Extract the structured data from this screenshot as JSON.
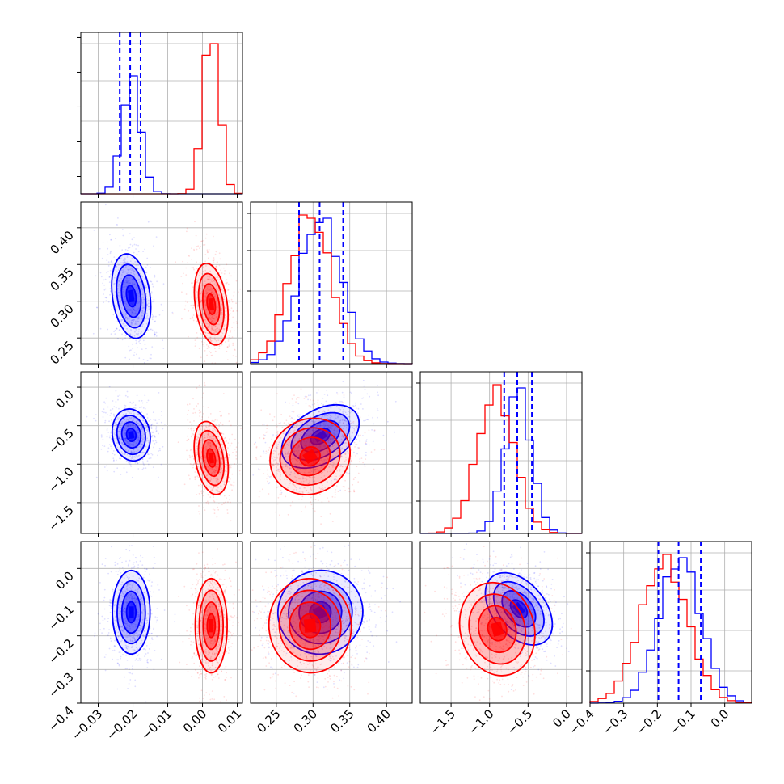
{
  "chart_data": {
    "type": "corner",
    "series": [
      {
        "name": "",
        "color": "#0000ff"
      },
      {
        "name": "",
        "color": "#ff0000"
      }
    ],
    "parameters": [
      {
        "range": [
          -0.035,
          0.0115
        ],
        "ticks": [
          "−0.03",
          "−0.02",
          "−0.01",
          "0.00",
          "0.01"
        ],
        "tick_values": [
          -0.03,
          -0.02,
          -0.01,
          0.0,
          0.01
        ]
      },
      {
        "range": [
          0.215,
          0.435
        ],
        "ticks": [
          "0.25",
          "0.30",
          "0.35",
          "0.40"
        ],
        "tick_values": [
          0.25,
          0.3,
          0.35,
          0.4
        ]
      },
      {
        "range": [
          -1.9,
          0.2
        ],
        "ticks": [
          "−1.5",
          "−1.0",
          "−0.5",
          "0.0"
        ],
        "tick_values": [
          -1.5,
          -1.0,
          -0.5,
          0.0
        ]
      },
      {
        "range": [
          -0.4,
          0.08
        ],
        "ticks": [
          "−0.4",
          "−0.3",
          "−0.2",
          "−0.1",
          "0.0"
        ],
        "tick_values": [
          -0.4,
          -0.3,
          -0.2,
          -0.1,
          0.0
        ]
      }
    ],
    "marginals": [
      {
        "blue": {
          "mean": -0.0205,
          "sd": 0.0027
        },
        "red": {
          "mean": 0.0025,
          "sd": 0.0023
        },
        "quantiles": [
          -0.0238,
          -0.0208,
          -0.0178
        ]
      },
      {
        "blue": {
          "mean": 0.31,
          "sd": 0.029
        },
        "red": {
          "mean": 0.296,
          "sd": 0.028
        },
        "quantiles": [
          0.281,
          0.309,
          0.341
        ]
      },
      {
        "blue": {
          "mean": -0.63,
          "sd": 0.17
        },
        "red": {
          "mean": -0.92,
          "sd": 0.24
        },
        "quantiles": [
          -0.81,
          -0.64,
          -0.45
        ]
      },
      {
        "blue": {
          "mean": -0.133,
          "sd": 0.062
        },
        "red": {
          "mean": -0.18,
          "sd": 0.07
        },
        "quantiles": [
          -0.197,
          -0.137,
          -0.071
        ]
      }
    ],
    "joint_centers": {
      "1_0": {
        "blue": [
          -0.0205,
          0.307
        ],
        "red": [
          0.0025,
          0.296
        ]
      },
      "2_0": {
        "blue": [
          -0.0205,
          -0.62
        ],
        "red": [
          0.0025,
          -0.92
        ]
      },
      "2_1": {
        "blue": [
          0.31,
          -0.64
        ],
        "red": [
          0.296,
          -0.9
        ]
      },
      "3_0": {
        "blue": [
          -0.0205,
          -0.13
        ],
        "red": [
          0.0025,
          -0.17
        ]
      },
      "3_1": {
        "blue": [
          0.31,
          -0.13
        ],
        "red": [
          0.296,
          -0.17
        ]
      },
      "3_2": {
        "blue": [
          -0.62,
          -0.12
        ],
        "red": [
          -0.9,
          -0.18
        ]
      }
    },
    "grid": true
  }
}
